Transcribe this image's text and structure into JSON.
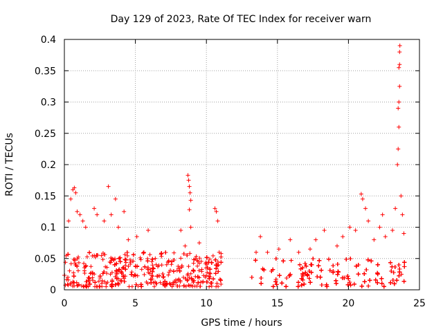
{
  "chart_data": {
    "type": "scatter",
    "title": "Day 129 of 2023, Rate Of TEC Index for receiver warn",
    "xlabel": "GPS time / hours",
    "ylabel": "ROTI / TECUs",
    "xlim": [
      0,
      25
    ],
    "ylim": [
      0,
      0.4
    ],
    "xticks": [
      0,
      5,
      10,
      15,
      20,
      25
    ],
    "xtick_labels": [
      "0",
      "5",
      "10",
      "15",
      "20",
      "25"
    ],
    "yticks": [
      0,
      0.05,
      0.1,
      0.15,
      0.2,
      0.25,
      0.3,
      0.35,
      0.4
    ],
    "ytick_labels": [
      "0",
      "0.05",
      "0.1",
      "0.15",
      "0.2",
      "0.25",
      "0.3",
      "0.35",
      "0.4"
    ],
    "grid": true,
    "marker": "plus",
    "color": "#ff0000",
    "series": [
      {
        "name": "ROTI",
        "segments": [
          {
            "x_range": [
              0.0,
              11.1
            ],
            "typical_range": [
              0.005,
              0.06
            ]
          },
          {
            "x_range": [
              13.2,
              24.0
            ],
            "typical_range": [
              0.005,
              0.05
            ]
          }
        ],
        "points": [
          {
            "x": 0.3,
            "y": 0.11
          },
          {
            "x": 0.45,
            "y": 0.145
          },
          {
            "x": 0.6,
            "y": 0.16
          },
          {
            "x": 0.7,
            "y": 0.163
          },
          {
            "x": 0.8,
            "y": 0.155
          },
          {
            "x": 0.9,
            "y": 0.125
          },
          {
            "x": 1.1,
            "y": 0.12
          },
          {
            "x": 1.3,
            "y": 0.11
          },
          {
            "x": 1.5,
            "y": 0.1
          },
          {
            "x": 2.1,
            "y": 0.13
          },
          {
            "x": 2.3,
            "y": 0.12
          },
          {
            "x": 2.8,
            "y": 0.11
          },
          {
            "x": 3.1,
            "y": 0.165
          },
          {
            "x": 3.3,
            "y": 0.12
          },
          {
            "x": 3.6,
            "y": 0.145
          },
          {
            "x": 3.8,
            "y": 0.1
          },
          {
            "x": 4.2,
            "y": 0.125
          },
          {
            "x": 4.5,
            "y": 0.08
          },
          {
            "x": 5.1,
            "y": 0.085
          },
          {
            "x": 5.6,
            "y": 0.06
          },
          {
            "x": 5.9,
            "y": 0.095
          },
          {
            "x": 6.4,
            "y": 0.05
          },
          {
            "x": 7.2,
            "y": 0.04
          },
          {
            "x": 8.2,
            "y": 0.095
          },
          {
            "x": 8.5,
            "y": 0.07
          },
          {
            "x": 8.7,
            "y": 0.183
          },
          {
            "x": 8.75,
            "y": 0.175
          },
          {
            "x": 8.8,
            "y": 0.165
          },
          {
            "x": 8.85,
            "y": 0.155
          },
          {
            "x": 8.9,
            "y": 0.143
          },
          {
            "x": 8.8,
            "y": 0.128
          },
          {
            "x": 8.9,
            "y": 0.1
          },
          {
            "x": 9.5,
            "y": 0.075
          },
          {
            "x": 10.6,
            "y": 0.13
          },
          {
            "x": 10.7,
            "y": 0.125
          },
          {
            "x": 10.8,
            "y": 0.11
          },
          {
            "x": 10.9,
            "y": 0.06
          },
          {
            "x": 13.5,
            "y": 0.06
          },
          {
            "x": 13.8,
            "y": 0.085
          },
          {
            "x": 14.3,
            "y": 0.06
          },
          {
            "x": 15.1,
            "y": 0.065
          },
          {
            "x": 15.9,
            "y": 0.08
          },
          {
            "x": 16.5,
            "y": 0.06
          },
          {
            "x": 17.3,
            "y": 0.065
          },
          {
            "x": 17.7,
            "y": 0.08
          },
          {
            "x": 18.3,
            "y": 0.095
          },
          {
            "x": 19.2,
            "y": 0.07
          },
          {
            "x": 19.6,
            "y": 0.085
          },
          {
            "x": 20.1,
            "y": 0.1
          },
          {
            "x": 20.5,
            "y": 0.095
          },
          {
            "x": 20.9,
            "y": 0.153
          },
          {
            "x": 21.0,
            "y": 0.145
          },
          {
            "x": 21.2,
            "y": 0.13
          },
          {
            "x": 21.4,
            "y": 0.11
          },
          {
            "x": 21.8,
            "y": 0.08
          },
          {
            "x": 22.2,
            "y": 0.1
          },
          {
            "x": 22.4,
            "y": 0.12
          },
          {
            "x": 22.6,
            "y": 0.085
          },
          {
            "x": 23.1,
            "y": 0.095
          },
          {
            "x": 23.3,
            "y": 0.13
          },
          {
            "x": 23.45,
            "y": 0.2
          },
          {
            "x": 23.5,
            "y": 0.225
          },
          {
            "x": 23.55,
            "y": 0.26
          },
          {
            "x": 23.5,
            "y": 0.29
          },
          {
            "x": 23.55,
            "y": 0.3
          },
          {
            "x": 23.6,
            "y": 0.325
          },
          {
            "x": 23.55,
            "y": 0.355
          },
          {
            "x": 23.6,
            "y": 0.36
          },
          {
            "x": 23.6,
            "y": 0.38
          },
          {
            "x": 23.62,
            "y": 0.39
          },
          {
            "x": 23.7,
            "y": 0.15
          },
          {
            "x": 23.8,
            "y": 0.12
          },
          {
            "x": 23.9,
            "y": 0.09
          }
        ]
      }
    ]
  }
}
